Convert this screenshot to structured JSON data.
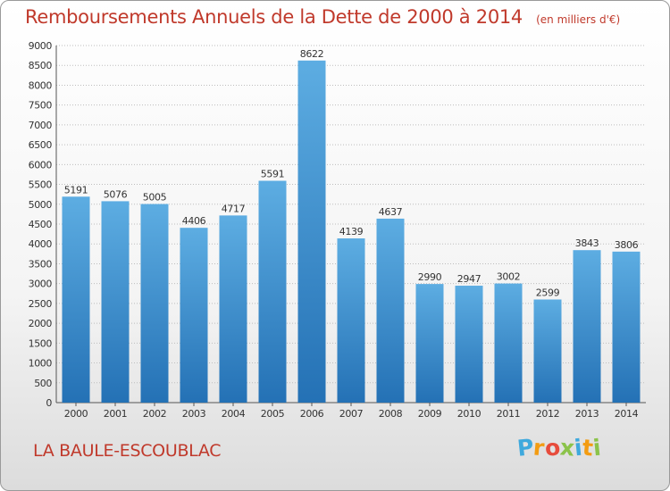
{
  "header": {
    "title": "Remboursements Annuels de la Dette de 2000 à 2014",
    "subtitle": "(en milliers d'€)"
  },
  "footer": {
    "commune": "LA BAULE-ESCOUBLAC",
    "logo_letters": [
      "P",
      "r",
      "o",
      "x",
      "i",
      "t",
      "i"
    ],
    "logo_colors": [
      "#3fa9dd",
      "#f39c12",
      "#e74c3c",
      "#8bc34a",
      "#3fa9dd",
      "#f39c12",
      "#8bc34a"
    ]
  },
  "chart_data": {
    "type": "bar",
    "categories": [
      "2000",
      "2001",
      "2002",
      "2003",
      "2004",
      "2005",
      "2006",
      "2007",
      "2008",
      "2009",
      "2010",
      "2011",
      "2012",
      "2013",
      "2014"
    ],
    "values": [
      5191,
      5076,
      5005,
      4406,
      4717,
      5591,
      8622,
      4139,
      4637,
      2990,
      2947,
      3002,
      2599,
      3843,
      3806
    ],
    "ylim": [
      0,
      9000
    ],
    "ytick_step": 500,
    "grid": true,
    "bar_color_top": "#5dade2",
    "bar_color_bottom": "#2471b5",
    "grid_color": "#bdbdbd"
  }
}
